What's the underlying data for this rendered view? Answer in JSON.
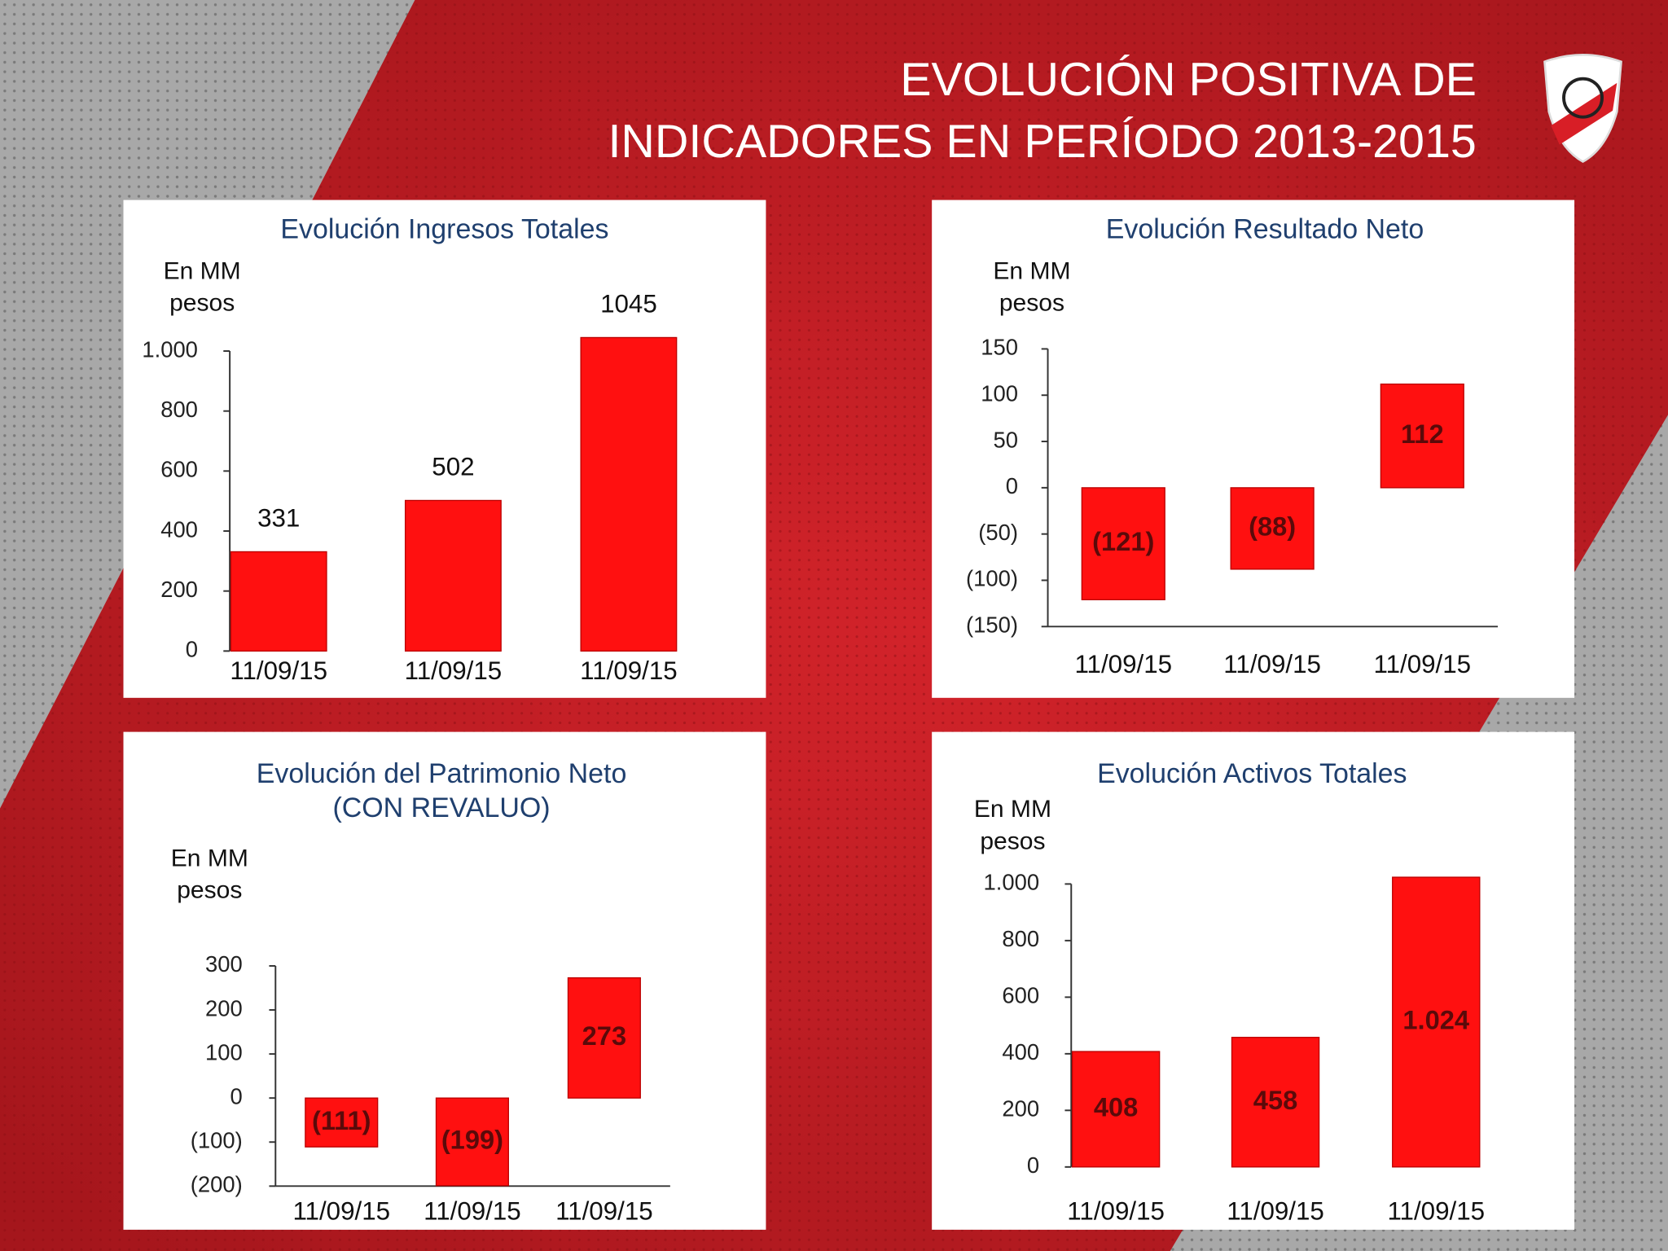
{
  "title": [
    "EVOLUCIÓN POSITIVA DE",
    "INDICADORES EN PERÍODO 2013-2015"
  ],
  "chart_data": [
    {
      "type": "bar",
      "title": "Evolución Ingresos Totales",
      "ylabel": [
        "En MM",
        "pesos"
      ],
      "categories": [
        "11/09/15",
        "11/09/15",
        "11/09/15"
      ],
      "values": [
        331,
        502,
        1045
      ],
      "color": "#ff1010",
      "ylim": [
        0,
        1000
      ],
      "yticks": [
        0,
        200,
        400,
        600,
        800,
        {
          "value": 1000,
          "label": "1.000"
        }
      ]
    },
    {
      "type": "bar",
      "title": "Evolución Resultado Neto",
      "ylabel": [
        "En MM",
        "pesos"
      ],
      "categories": [
        "11/09/15",
        "11/09/15",
        "11/09/15"
      ],
      "values": [
        -121,
        -88,
        112
      ],
      "value_labels": [
        "(121)",
        "(88)",
        "112"
      ],
      "color": "#ff1010",
      "ylim": [
        -150,
        150
      ],
      "yticks": [
        {
          "value": -150,
          "label": "(150)"
        },
        {
          "value": -100,
          "label": "(100)"
        },
        {
          "value": -50,
          "label": "(50)"
        },
        0,
        50,
        100,
        150
      ]
    },
    {
      "type": "bar",
      "title": "Evolución del Patrimonio Neto",
      "subtitle": "(CON REVALUO)",
      "ylabel": [
        "En MM",
        "pesos"
      ],
      "categories": [
        "11/09/15",
        "11/09/15",
        "11/09/15"
      ],
      "values": [
        -111,
        -199,
        273
      ],
      "value_labels": [
        "(111)",
        "(199)",
        "273"
      ],
      "color": "#ff1010",
      "ylim": [
        -200,
        300
      ],
      "yticks": [
        {
          "value": -200,
          "label": "(200)"
        },
        {
          "value": -100,
          "label": "(100)"
        },
        0,
        100,
        200,
        300
      ]
    },
    {
      "type": "bar",
      "title": "Evolución Activos Totales",
      "ylabel": [
        "En MM",
        "pesos"
      ],
      "categories": [
        "11/09/15",
        "11/09/15",
        "11/09/15"
      ],
      "values": [
        408,
        458,
        1024
      ],
      "value_labels": [
        "408",
        "458",
        "1.024"
      ],
      "color": "#ff1010",
      "ylim": [
        0,
        1000
      ],
      "yticks": [
        0,
        200,
        400,
        600,
        800,
        {
          "value": 1000,
          "label": "1.000"
        }
      ]
    }
  ]
}
